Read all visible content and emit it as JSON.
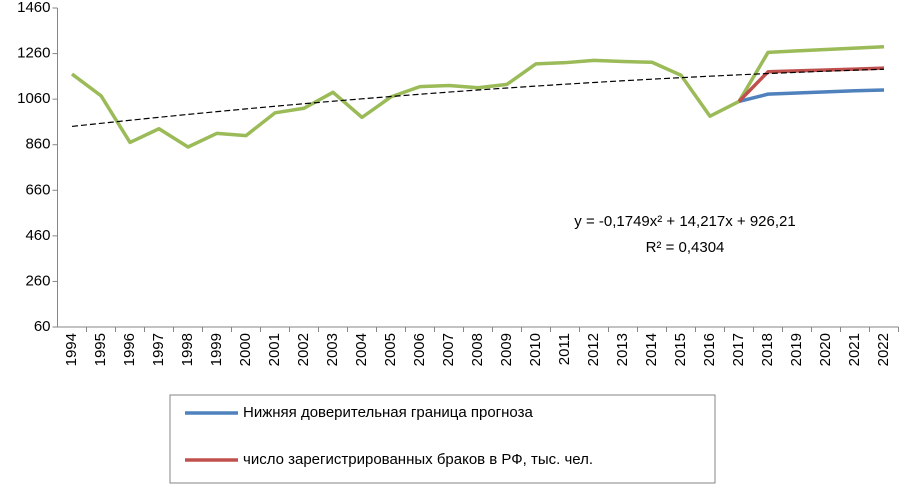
{
  "chart_data": {
    "type": "line",
    "categories": [
      "1994",
      "1995",
      "1996",
      "1997",
      "1998",
      "1999",
      "2000",
      "2001",
      "2002",
      "2003",
      "2004",
      "2005",
      "2006",
      "2007",
      "2008",
      "2009",
      "2010",
      "2011",
      "2012",
      "2013",
      "2014",
      "2015",
      "2016",
      "2017",
      "2018",
      "2019",
      "2020",
      "2021",
      "2022"
    ],
    "series": [
      {
        "color": "#9bbb59",
        "values": [
          1170,
          1075,
          870,
          930,
          850,
          910,
          900,
          1000,
          1020,
          1090,
          980,
          1070,
          1115,
          1120,
          1110,
          1125,
          1215,
          1220,
          1230,
          1225,
          1222,
          1165,
          985,
          1050,
          1265,
          1272,
          1278,
          1284,
          1290
        ]
      },
      {
        "name": "Нижняя доверительная граница прогноза",
        "color": "#4f81bd",
        "values": [
          null,
          null,
          null,
          null,
          null,
          null,
          null,
          null,
          null,
          null,
          null,
          null,
          null,
          null,
          null,
          null,
          null,
          null,
          null,
          null,
          null,
          null,
          null,
          1050,
          1082,
          1087,
          1092,
          1097,
          1100
        ]
      },
      {
        "name": "число зарегистрированных браков в РФ,  тыс. чел.",
        "color": "#c0504d",
        "values": [
          null,
          null,
          null,
          null,
          null,
          null,
          null,
          null,
          null,
          null,
          null,
          null,
          null,
          null,
          null,
          null,
          null,
          null,
          null,
          null,
          null,
          null,
          null,
          1050,
          1180,
          1184,
          1188,
          1192,
          1196
        ]
      },
      {
        "color": "#000000",
        "dashed": true,
        "values": [
          940.3,
          953.9,
          967.3,
          980.3,
          992.9,
          1005.2,
          1017.2,
          1028.8,
          1040.0,
          1050.9,
          1061.4,
          1071.6,
          1081.5,
          1091.0,
          1100.1,
          1108.9,
          1117.4,
          1125.5,
          1133.2,
          1140.6,
          1147.6,
          1154.3,
          1160.7,
          1166.7,
          1172.3,
          1177.6,
          1182.6,
          1187.2,
          1191.4
        ]
      }
    ],
    "annotations": [
      "y = -0,1749x² + 14,217x + 926,21",
      "R² = 0,4304"
    ],
    "ylim": [
      60,
      1460
    ],
    "yticks": [
      60,
      260,
      460,
      660,
      860,
      1060,
      1260,
      1460
    ],
    "grid": false
  }
}
